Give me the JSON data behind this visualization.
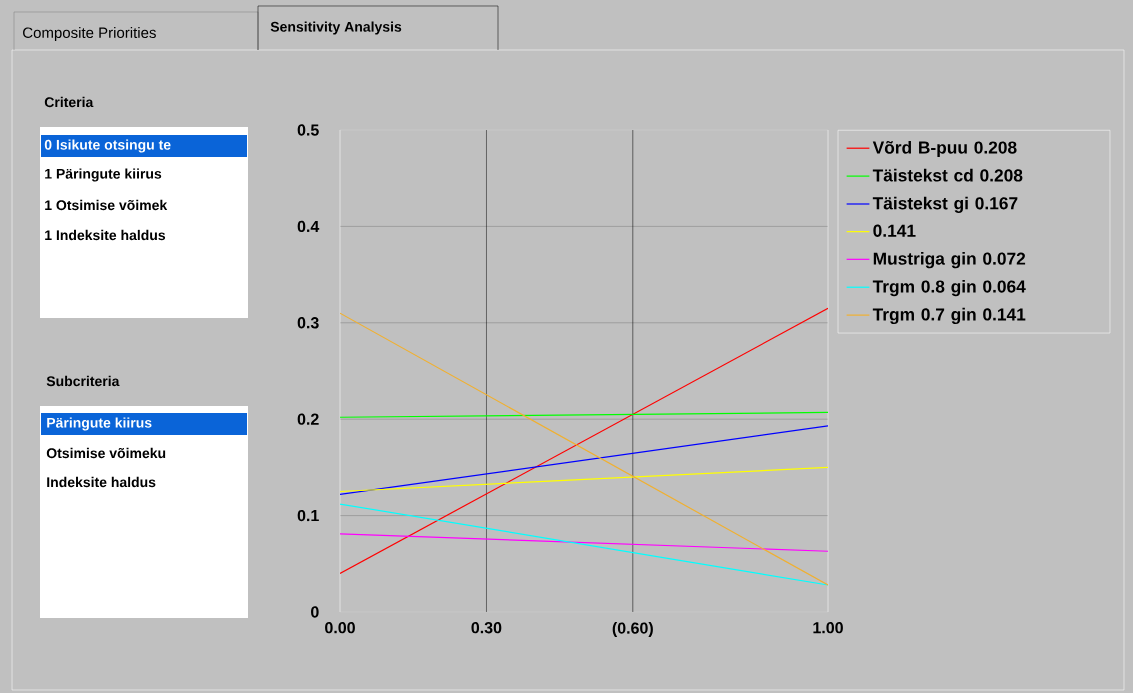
{
  "chart_data": {
    "type": "line",
    "x": [
      0,
      1
    ],
    "xlim": [
      0,
      1
    ],
    "xticks": [
      {
        "value": 0,
        "label": "0.00"
      },
      {
        "value": 0.3,
        "label": "0.30"
      },
      {
        "value": 0.6,
        "label": "(0.60)"
      },
      {
        "value": 1,
        "label": "1.00"
      }
    ],
    "ylim": [
      0,
      0.5
    ],
    "yticks": [
      0,
      0.1,
      0.2,
      0.3,
      0.4,
      0.5
    ],
    "grid": "y",
    "legend": "right",
    "ref_lines": [
      {
        "axis": "x",
        "value": 0.3,
        "color": "#000000"
      },
      {
        "axis": "x",
        "value": 0.6,
        "color": "#000000"
      }
    ],
    "series": [
      {
        "name": "Võrd B-puu  0.208",
        "color": "#ff0000",
        "values": [
          0.04,
          0.315
        ]
      },
      {
        "name": "Täistekst cd 0.208",
        "color": "#00ff00",
        "values": [
          0.202,
          0.207
        ]
      },
      {
        "name": "Täistekst gi  0.167",
        "color": "#0000ff",
        "values": [
          0.122,
          0.193
        ]
      },
      {
        "name": "0.141",
        "color": "#ffff00",
        "values": [
          0.125,
          0.15
        ]
      },
      {
        "name": "Mustriga gin 0.072",
        "color": "#ff00ff",
        "values": [
          0.081,
          0.063
        ]
      },
      {
        "name": "Trgm 0.8 gin 0.064",
        "color": "#00ffff",
        "values": [
          0.112,
          0.028
        ]
      },
      {
        "name": "Trgm 0.7 gin 0.141",
        "color": "#f0b030",
        "values": [
          0.31,
          0.028
        ]
      }
    ],
    "annotations": [
      "Composite Priorities",
      "Sensitivity Analysis",
      "Criteria",
      "0 Isikute otsingu te",
      "1 Päringute kiirus",
      "1 Otsimise võimek",
      "1 Indeksite haldus",
      "Subcriteria",
      "Päringute kiirus",
      "Otsimise võimeku",
      "Indeksite haldus"
    ]
  }
}
